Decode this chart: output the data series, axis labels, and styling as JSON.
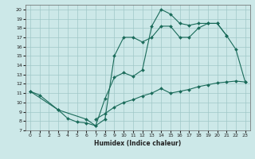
{
  "xlabel": "Humidex (Indice chaleur)",
  "xlim": [
    -0.5,
    23.5
  ],
  "ylim": [
    7,
    20.5
  ],
  "xticks": [
    0,
    1,
    2,
    3,
    4,
    5,
    6,
    7,
    8,
    9,
    10,
    11,
    12,
    13,
    14,
    15,
    16,
    17,
    18,
    19,
    20,
    21,
    22,
    23
  ],
  "yticks": [
    7,
    8,
    9,
    10,
    11,
    12,
    13,
    14,
    15,
    16,
    17,
    18,
    19,
    20
  ],
  "background_color": "#cce8e8",
  "grid_color": "#a0c8c8",
  "line_color": "#1a6b5a",
  "line1_x": [
    0,
    1,
    3,
    4,
    5,
    6,
    7,
    8,
    9,
    10,
    11,
    12,
    13,
    14,
    15,
    16,
    17,
    18,
    19,
    20,
    21,
    22,
    23
  ],
  "line1_y": [
    11.2,
    10.8,
    9.2,
    8.3,
    7.9,
    7.8,
    7.5,
    10.4,
    12.7,
    13.2,
    12.8,
    13.5,
    18.2,
    20.0,
    19.5,
    18.5,
    18.3,
    18.5,
    18.5,
    18.5,
    17.2,
    15.7,
    12.2
  ],
  "line2_x": [
    7,
    8,
    9,
    10,
    11,
    12,
    13,
    14,
    15,
    16,
    17,
    18,
    19,
    20,
    21,
    22,
    23
  ],
  "line2_y": [
    8.2,
    8.8,
    9.5,
    10.0,
    10.3,
    10.7,
    11.0,
    11.5,
    11.0,
    11.2,
    11.4,
    11.7,
    11.9,
    12.1,
    12.2,
    12.3,
    12.2
  ],
  "line3_x": [
    0,
    3,
    6,
    7,
    8,
    9,
    10,
    11,
    12,
    13,
    14,
    15,
    16,
    17,
    18,
    19,
    20,
    21
  ],
  "line3_y": [
    11.2,
    9.2,
    8.2,
    7.5,
    8.2,
    15.0,
    17.0,
    17.0,
    16.5,
    17.0,
    18.2,
    18.2,
    17.0,
    17.0,
    18.0,
    18.5,
    18.5,
    17.2
  ]
}
